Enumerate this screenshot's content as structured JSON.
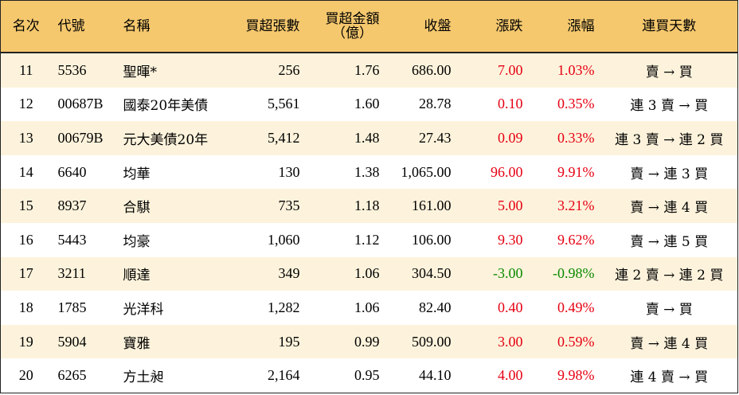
{
  "headers": {
    "rank": "名次",
    "code": "代號",
    "name": "名稱",
    "net_lots": "買超張數",
    "net_amount_1": "買超金額",
    "net_amount_2": "（億）",
    "close": "收盤",
    "change": "漲跌",
    "change_pct": "漲幅",
    "streak": "連買天數"
  },
  "rows": [
    {
      "rank": "11",
      "code": "5536",
      "name": "聖暉*",
      "net_lots": "256",
      "net_amount": "1.76",
      "close": "686.00",
      "change": "7.00",
      "change_pct": "1.03%",
      "streak": "賣 → 買",
      "dir": "up"
    },
    {
      "rank": "12",
      "code": "00687B",
      "name": "國泰20年美債",
      "net_lots": "5,561",
      "net_amount": "1.60",
      "close": "28.78",
      "change": "0.10",
      "change_pct": "0.35%",
      "streak": "連 3 賣 → 買",
      "dir": "up"
    },
    {
      "rank": "13",
      "code": "00679B",
      "name": "元大美債20年",
      "net_lots": "5,412",
      "net_amount": "1.48",
      "close": "27.43",
      "change": "0.09",
      "change_pct": "0.33%",
      "streak": "連 3 賣 → 連 2 買",
      "dir": "up"
    },
    {
      "rank": "14",
      "code": "6640",
      "name": "均華",
      "net_lots": "130",
      "net_amount": "1.38",
      "close": "1,065.00",
      "change": "96.00",
      "change_pct": "9.91%",
      "streak": "賣 → 連 3 買",
      "dir": "up"
    },
    {
      "rank": "15",
      "code": "8937",
      "name": "合騏",
      "net_lots": "735",
      "net_amount": "1.18",
      "close": "161.00",
      "change": "5.00",
      "change_pct": "3.21%",
      "streak": "賣 → 連 4 買",
      "dir": "up"
    },
    {
      "rank": "16",
      "code": "5443",
      "name": "均豪",
      "net_lots": "1,060",
      "net_amount": "1.12",
      "close": "106.00",
      "change": "9.30",
      "change_pct": "9.62%",
      "streak": "賣 → 連 5 買",
      "dir": "up"
    },
    {
      "rank": "17",
      "code": "3211",
      "name": "順達",
      "net_lots": "349",
      "net_amount": "1.06",
      "close": "304.50",
      "change": "-3.00",
      "change_pct": "-0.98%",
      "streak": "連 2 賣 → 連 2 買",
      "dir": "down"
    },
    {
      "rank": "18",
      "code": "1785",
      "name": "光洋科",
      "net_lots": "1,282",
      "net_amount": "1.06",
      "close": "82.40",
      "change": "0.40",
      "change_pct": "0.49%",
      "streak": "賣 → 買",
      "dir": "up"
    },
    {
      "rank": "19",
      "code": "5904",
      "name": "寶雅",
      "net_lots": "195",
      "net_amount": "0.99",
      "close": "509.00",
      "change": "3.00",
      "change_pct": "0.59%",
      "streak": "賣 → 連 4 買",
      "dir": "up"
    },
    {
      "rank": "20",
      "code": "6265",
      "name": "方土昶",
      "net_lots": "2,164",
      "net_amount": "0.95",
      "close": "44.10",
      "change": "4.00",
      "change_pct": "9.98%",
      "streak": "連 4 賣 → 買",
      "dir": "up"
    }
  ],
  "colors": {
    "header_bg": "#f5c86e",
    "stripe_bg": "#fdf3dc",
    "up": "#e60012",
    "down": "#0a8a00"
  }
}
